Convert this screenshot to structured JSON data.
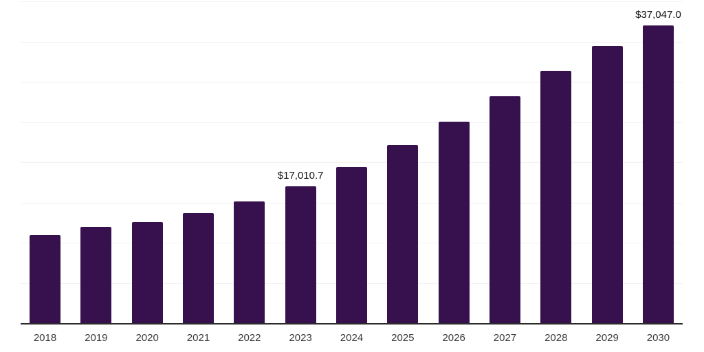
{
  "chart_data": {
    "type": "bar",
    "title": "",
    "xlabel": "",
    "ylabel": "",
    "categories": [
      "2018",
      "2019",
      "2020",
      "2021",
      "2022",
      "2023",
      "2024",
      "2025",
      "2026",
      "2027",
      "2028",
      "2029",
      "2030"
    ],
    "values": [
      10950,
      12000,
      12550,
      13670,
      15130,
      17010.7,
      19400,
      22140,
      25050,
      28200,
      31400,
      34480,
      37047
    ],
    "value_labels": {
      "2023": "$17,010.7",
      "2030": "$37,047.0"
    },
    "ylim": [
      0,
      40000
    ],
    "gridline_step": 5000,
    "grid": "horizontal-only",
    "legend": "none",
    "y_tick_labels_visible": false,
    "colors": {
      "bar": "#36114d",
      "axis_line": "#2b2b2b",
      "gridline": "#f1f1f3",
      "tick_label": "#3a3a3a",
      "value_label": "#111111",
      "background": "#ffffff"
    }
  }
}
